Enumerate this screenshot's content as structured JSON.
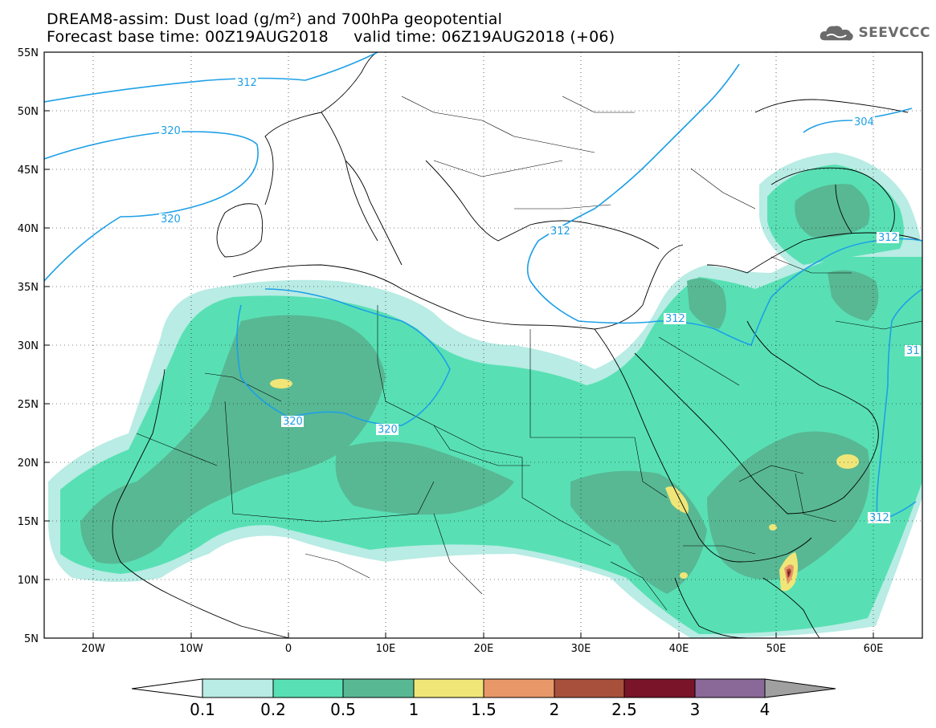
{
  "header": {
    "line1": "DREAM8-assim: Dust load (g/m²) and 700hPa geopotential",
    "line2": "Forecast base time: 00Z19AUG2018     valid time: 06Z19AUG2018 (+06)"
  },
  "logo": {
    "text": "SEEVCCC",
    "icon": "cloud-icon"
  },
  "map": {
    "lat_labels": [
      "55N",
      "50N",
      "45N",
      "40N",
      "35N",
      "30N",
      "25N",
      "20N",
      "15N",
      "10N",
      "5N"
    ],
    "lon_labels": [
      "20W",
      "10W",
      "0",
      "10E",
      "20E",
      "30E",
      "40E",
      "50E",
      "60E"
    ],
    "contour_labels": [
      "312",
      "320",
      "320",
      "320",
      "320",
      "312",
      "312",
      "312",
      "304",
      "312",
      "31"
    ],
    "colors": {
      "c01": "#b8ece4",
      "c02": "#58e0b4",
      "c05": "#58b894",
      "c1": "#f0e678",
      "c15": "#e89868",
      "c2": "#a8503c",
      "c25": "#7a1428",
      "c3": "#8a6898",
      "c4": "#a0a0a0",
      "contour": "#1ea0e6"
    }
  },
  "colorbar": {
    "labels": [
      "0.1",
      "0.2",
      "0.5",
      "1",
      "1.5",
      "2",
      "2.5",
      "3",
      "4"
    ],
    "colors": [
      "#b8ece4",
      "#58e0b4",
      "#58b894",
      "#f0e678",
      "#e89868",
      "#a8503c",
      "#7a1428",
      "#8a6898",
      "#a0a0a0"
    ]
  }
}
